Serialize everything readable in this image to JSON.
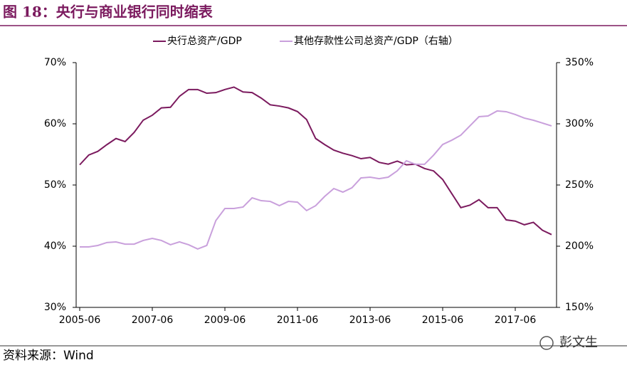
{
  "chart_data": {
    "type": "line",
    "title": "图 18：央行与商业银行同时缩表",
    "source": "资料来源：Wind",
    "watermark": "彭文生",
    "categories": [
      "2005-06",
      null,
      null,
      null,
      null,
      null,
      null,
      null,
      "2007-06",
      null,
      null,
      null,
      null,
      null,
      null,
      null,
      "2009-06",
      null,
      null,
      null,
      null,
      null,
      null,
      null,
      "2011-06",
      null,
      null,
      null,
      null,
      null,
      null,
      null,
      "2013-06",
      null,
      null,
      null,
      null,
      null,
      null,
      null,
      "2015-06",
      null,
      null,
      null,
      null,
      null,
      null,
      null,
      "2017-06",
      null,
      null,
      null,
      null
    ],
    "ylim": [
      30,
      70
    ],
    "yticks": [
      {
        "value": 30,
        "label": "30%"
      },
      {
        "value": 40,
        "label": "40%"
      },
      {
        "value": 50,
        "label": "50%"
      },
      {
        "value": 60,
        "label": "60%"
      },
      {
        "value": 70,
        "label": "70%"
      }
    ],
    "y2lim": [
      150,
      350
    ],
    "y2ticks": [
      {
        "value": 150,
        "label": "150%"
      },
      {
        "value": 200,
        "label": "200%"
      },
      {
        "value": 250,
        "label": "250%"
      },
      {
        "value": 300,
        "label": "300%"
      },
      {
        "value": 350,
        "label": "350%"
      }
    ],
    "series": [
      {
        "name": "央行总资产/GDP",
        "color": "#7b1a5e",
        "values": [
          53.3,
          54.9,
          55.5,
          56.6,
          57.6,
          57.1,
          58.6,
          60.6,
          61.4,
          62.6,
          62.7,
          64.5,
          65.6,
          65.6,
          65.0,
          65.1,
          65.6,
          66.0,
          65.2,
          65.1,
          64.2,
          63.1,
          62.9,
          62.6,
          62.0,
          60.7,
          57.6,
          56.6,
          55.7,
          55.2,
          54.8,
          54.3,
          54.5,
          53.7,
          53.4,
          53.9,
          53.3,
          53.4,
          52.7,
          52.3,
          50.9,
          48.6,
          46.3,
          46.7,
          47.6,
          46.3,
          46.3,
          44.3,
          44.1,
          43.5,
          43.9,
          42.6,
          41.9
        ]
      },
      {
        "name": "其他存款性公司总资产/GDP（右轴）",
        "color": "#c9a0dc",
        "axis": "y2",
        "values": [
          199.4,
          199.4,
          200.6,
          203,
          203.5,
          201.7,
          201.7,
          204.7,
          206.4,
          204.7,
          201.2,
          203.5,
          201.2,
          197.7,
          200.6,
          220.9,
          230.8,
          230.8,
          232,
          239.5,
          237.2,
          236.6,
          233.1,
          236.6,
          236,
          229.1,
          233.1,
          240.7,
          247.1,
          244.2,
          247.7,
          255.8,
          256.4,
          255.2,
          256.4,
          261.6,
          269.8,
          266.9,
          266.9,
          274.4,
          283.1,
          286.6,
          290.7,
          298.3,
          305.8,
          306.4,
          310.5,
          309.9,
          307.6,
          304.7,
          302.9,
          300.6,
          298.3
        ]
      }
    ]
  }
}
